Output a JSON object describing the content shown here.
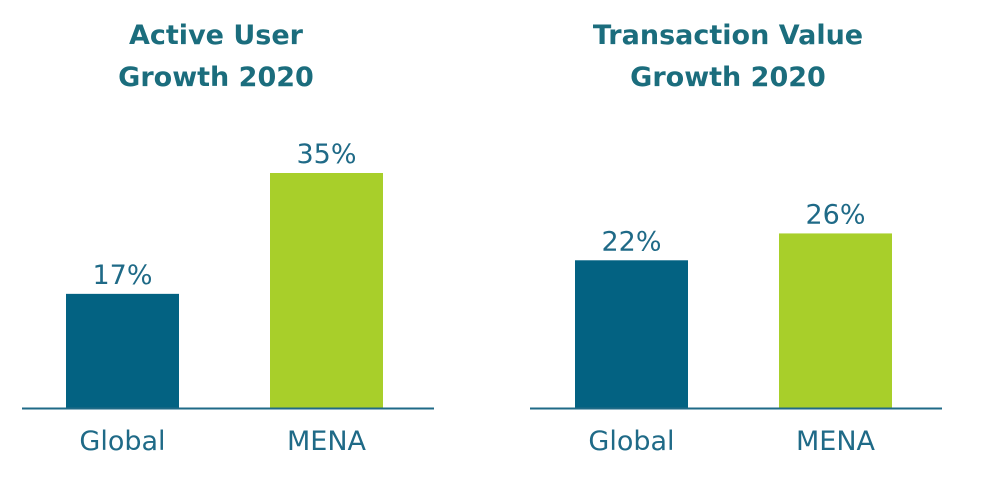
{
  "colors": {
    "title": "#1b6d7d",
    "global_bar": "#036282",
    "mena_bar": "#a8cf2a",
    "axis": "#1f6a87",
    "label": "#1f6a87"
  },
  "chart_data": [
    {
      "type": "bar",
      "title_lines": [
        "Active User",
        "Growth 2020"
      ],
      "categories": [
        "Global",
        "MENA"
      ],
      "values": [
        17,
        35
      ],
      "value_labels": [
        "17%",
        "35%"
      ],
      "ylim": [
        0,
        35
      ],
      "grid": false,
      "legend": "none",
      "xlabel": "",
      "ylabel": ""
    },
    {
      "type": "bar",
      "title_lines": [
        "Transaction Value",
        "Growth 2020"
      ],
      "categories": [
        "Global",
        "MENA"
      ],
      "values": [
        22,
        26
      ],
      "value_labels": [
        "22%",
        "26%"
      ],
      "ylim": [
        0,
        26
      ],
      "grid": false,
      "legend": "none",
      "xlabel": "",
      "ylabel": ""
    }
  ]
}
